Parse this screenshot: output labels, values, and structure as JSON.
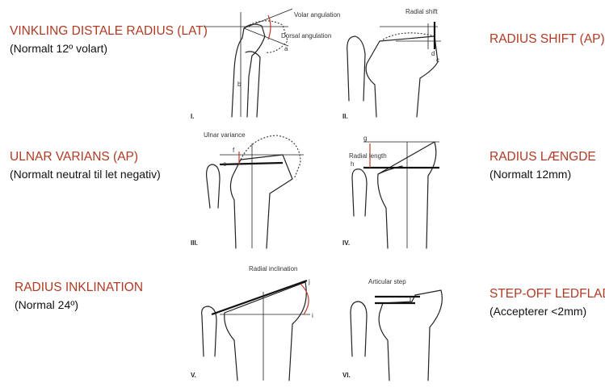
{
  "labels": {
    "lat": {
      "title": "VINKLING DISTALE RADIUS (LAT)",
      "sub": "(Normalt 12º volart)"
    },
    "shift": {
      "title": "RADIUS SHIFT (AP)"
    },
    "ulnar": {
      "title": "ULNAR VARIANS (AP)",
      "sub": "(Normalt neutral til let negativ)"
    },
    "length": {
      "title": "RADIUS LÆNGDE",
      "sub": "(Normalt 12mm)"
    },
    "inclination": {
      "title": "RADIUS INKLINATION",
      "sub": "(Normal 24º)"
    },
    "stepoff": {
      "title": "STEP-OFF LEDFLADE",
      "sub": "(Accepterer <2mm)"
    }
  },
  "figures": {
    "fig1": {
      "numeral": "I.",
      "volar": "Volar angulation",
      "dorsal": "Dorsal angulation",
      "a": "a",
      "b": "b"
    },
    "fig2": {
      "numeral": "II.",
      "caption": "Radial shift",
      "c": "c",
      "d": "d"
    },
    "fig3": {
      "numeral": "III.",
      "caption": "Ulnar variance",
      "e": "e",
      "f": "f"
    },
    "fig4": {
      "numeral": "IV.",
      "caption": "Radial length",
      "g": "g",
      "h": "h"
    },
    "fig5": {
      "numeral": "V.",
      "caption": "Radial inclination",
      "i": "i",
      "j": "j"
    },
    "fig6": {
      "numeral": "VI.",
      "caption": "Articular step"
    }
  }
}
